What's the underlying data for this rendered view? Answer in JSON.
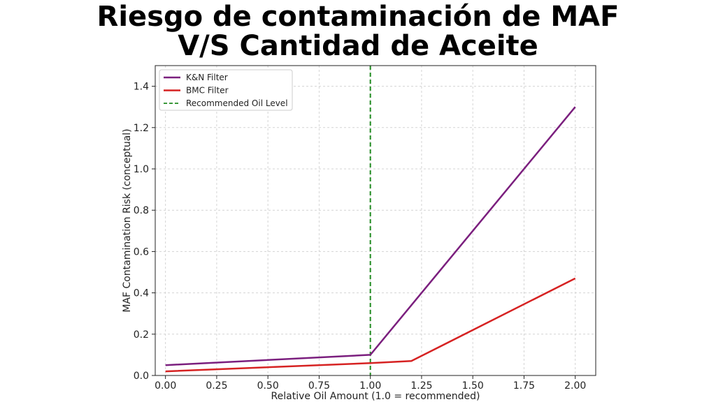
{
  "chart_data": {
    "type": "line",
    "title_lines": [
      "Riesgo de contaminación de MAF",
      "V/S Cantidad de Aceite"
    ],
    "xlabel": "Relative Oil Amount (1.0 = recommended)",
    "ylabel": "MAF Contamination Risk (conceptual)",
    "xlim": [
      -0.05,
      2.1
    ],
    "ylim": [
      0,
      1.5
    ],
    "xticks": [
      "0.00",
      "0.25",
      "0.50",
      "0.75",
      "1.00",
      "1.25",
      "1.50",
      "1.75",
      "2.00"
    ],
    "xtick_values": [
      0,
      0.25,
      0.5,
      0.75,
      1.0,
      1.25,
      1.5,
      1.75,
      2.0
    ],
    "yticks": [
      "0.0",
      "0.2",
      "0.4",
      "0.6",
      "0.8",
      "1.0",
      "1.2",
      "1.4"
    ],
    "ytick_values": [
      0,
      0.2,
      0.4,
      0.6,
      0.8,
      1.0,
      1.2,
      1.4
    ],
    "grid": true,
    "legend_position": "top-left",
    "series": [
      {
        "name": "K&N Filter",
        "color": "#7b1f7e",
        "x": [
          0,
          1.0,
          2.0
        ],
        "y": [
          0.05,
          0.1,
          1.3
        ]
      },
      {
        "name": "BMC Filter",
        "color": "#d62222",
        "x": [
          0,
          1.0,
          1.2,
          2.0
        ],
        "y": [
          0.02,
          0.06,
          0.07,
          0.47
        ]
      }
    ],
    "reference_line": {
      "name": "Recommended Oil Level",
      "x": 1.0,
      "color": "#1f8a1f",
      "style": "dashed"
    }
  }
}
